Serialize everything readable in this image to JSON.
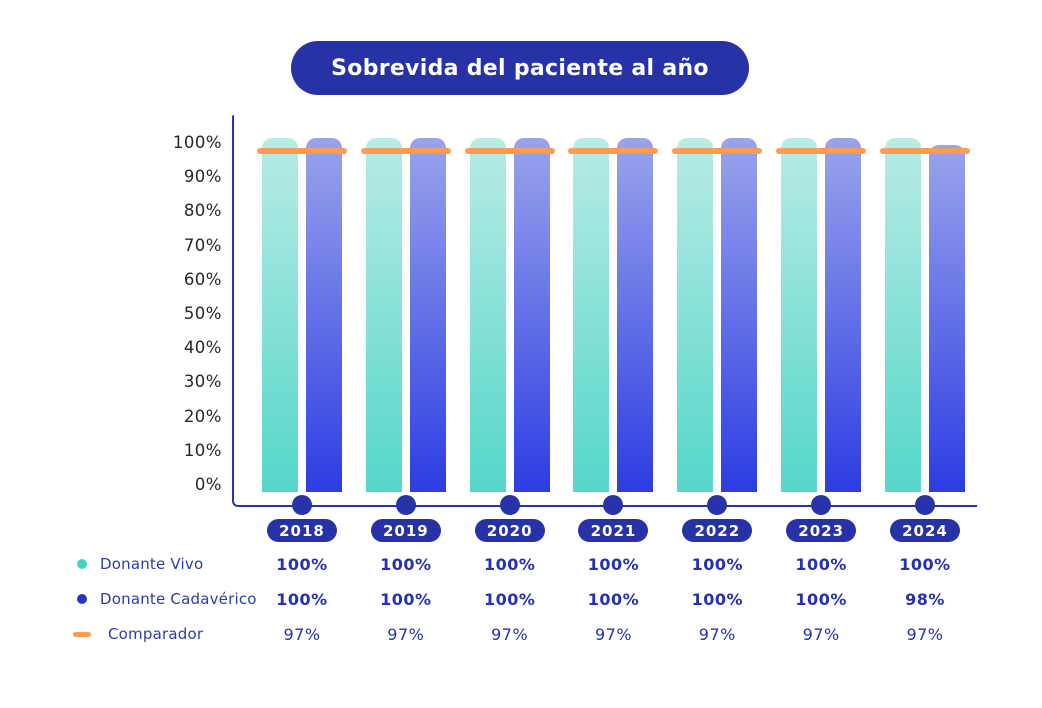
{
  "title": "Sobrevida del paciente al año",
  "chart_data": {
    "type": "bar",
    "title": "Sobrevida del paciente al año",
    "categories": [
      "2018",
      "2019",
      "2020",
      "2021",
      "2022",
      "2023",
      "2024"
    ],
    "series": [
      {
        "name": "Donante Vivo",
        "render": "bar",
        "values": [
          100,
          100,
          100,
          100,
          100,
          100,
          100
        ]
      },
      {
        "name": "Donante Cadavérico",
        "render": "bar",
        "values": [
          100,
          100,
          100,
          100,
          100,
          100,
          98
        ]
      },
      {
        "name": "Comparador",
        "render": "line",
        "values": [
          97,
          97,
          97,
          97,
          97,
          97,
          97
        ]
      }
    ],
    "ylim": [
      0,
      100
    ],
    "y_ticks": [
      "100%",
      "90%",
      "80%",
      "70%",
      "60%",
      "50%",
      "40%",
      "30%",
      "20%",
      "10%",
      "0%"
    ],
    "value_suffix": "%",
    "grid": false,
    "legend_position": "bottom-left"
  },
  "value_rows": [
    [
      "100%",
      "100%",
      "100%",
      "100%",
      "100%",
      "100%",
      "100%"
    ],
    [
      "100%",
      "100%",
      "100%",
      "100%",
      "100%",
      "100%",
      "98%"
    ],
    [
      "97%",
      "97%",
      "97%",
      "97%",
      "97%",
      "97%",
      "97%"
    ]
  ],
  "legend": {
    "items": [
      {
        "label": "Donante Vivo",
        "marker": "dot",
        "color": "#45d3c5"
      },
      {
        "label": "Donante Cadavérico",
        "marker": "dot",
        "color": "#2438c8"
      },
      {
        "label": "Comparador",
        "marker": "dash",
        "color": "#f89d58"
      }
    ]
  },
  "colors": {
    "navy": "#2733a8",
    "badge_blue": "#2632a5",
    "value_text": "#2531b5",
    "legend_text": "#2c3caa",
    "axis_label": "#26262b",
    "comparator_orange": "#f89d58",
    "teal_top": "#b8ebe5",
    "teal_bottom": "#55d7ca",
    "blue_top": "#9aa4ec",
    "blue_bottom": "#2c3de2"
  }
}
